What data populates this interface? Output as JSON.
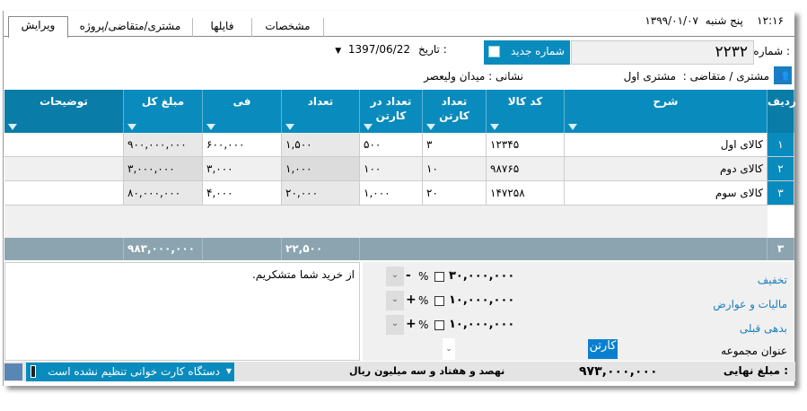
{
  "header": {
    "time": "۱۲:۱۶",
    "day": "پنج شنبه",
    "date": "۱۳۹۹/۰۱/۰۷"
  },
  "tabs": [
    {
      "label": "ویرایش"
    },
    {
      "label": "مشتری/متقاضی/پروژه"
    },
    {
      "label": "فایلها"
    },
    {
      "label": "مشخصات"
    }
  ],
  "form": {
    "number_label": "شماره :",
    "number_value": "۲۲۳۲",
    "new_number_button": "شماره جدید",
    "date_label": "تاریخ :",
    "date_value": "1397/06/22",
    "customer_label": "مشتری / متقاضی :",
    "customer_value": "مشتری اول",
    "address_label": "نشانی :",
    "address_value": "میدان ولیعصر"
  },
  "grid": {
    "columns": [
      "ردیف",
      "شرح",
      "کد کالا",
      "تعداد کارتن",
      "تعداد در کارتن",
      "تعداد",
      "فی",
      "مبلغ کل",
      "توضیحات"
    ],
    "rows": [
      {
        "no": "۱",
        "desc": "کالای اول",
        "code": "۱۲۳۴۵",
        "cartons": "۳",
        "per_carton": "۵۰۰",
        "qty": "۱,۵۰۰",
        "price": "۶۰۰,۰۰۰",
        "total": "۹۰۰,۰۰۰,۰۰۰",
        "note": ""
      },
      {
        "no": "۲",
        "desc": "کالای دوم",
        "code": "۹۸۷۶۵",
        "cartons": "۱۰",
        "per_carton": "۱۰۰",
        "qty": "۱,۰۰۰",
        "price": "۳,۰۰۰",
        "total": "۳,۰۰۰,۰۰۰",
        "note": ""
      },
      {
        "no": "۳",
        "desc": "کالای سوم",
        "code": "۱۴۷۲۵۸",
        "cartons": "۲۰",
        "per_carton": "۱,۰۰۰",
        "qty": "۲۰,۰۰۰",
        "price": "۴,۰۰۰",
        "total": "۸۰,۰۰۰,۰۰۰",
        "note": ""
      }
    ],
    "footer": {
      "count": "۳",
      "qty": "۲۲,۵۰۰",
      "total": "۹۸۳,۰۰۰,۰۰۰"
    }
  },
  "adjustments": [
    {
      "label": "تخفیف",
      "sign": "-",
      "amount": "۳۰,۰۰۰,۰۰۰"
    },
    {
      "label": "مالیات و عوارض",
      "sign": "+",
      "amount": "۱۰,۰۰۰,۰۰۰"
    },
    {
      "label": "بدهی قبلی",
      "sign": "+",
      "amount": "۱۰,۰۰۰,۰۰۰"
    }
  ],
  "percent_symbol": "%",
  "group": {
    "label": "عنوان مجموعه",
    "value": "کارتن"
  },
  "notes": "از خرید شما متشکریم.",
  "status": {
    "final_label": "مبلغ نهایی :",
    "final_value": "۹۷۳,۰۰۰,۰۰۰",
    "in_words": "نهصد و هفتاد و سه میلیون  ریال",
    "card_reader": "دستگاه کارت خوانی تنظیم نشده است"
  },
  "colors": {
    "accent": "#0a8bbd",
    "footer": "#8ca3b0"
  }
}
